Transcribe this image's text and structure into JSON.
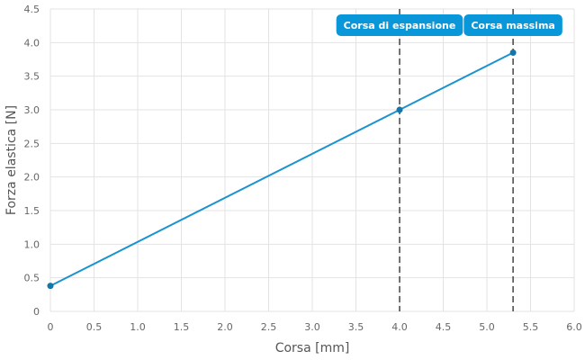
{
  "chart_data": {
    "type": "line",
    "title": "",
    "xlabel": "Corsa [mm]",
    "ylabel": "Forza elastica [N]",
    "xlim": [
      0,
      6
    ],
    "ylim": [
      0,
      4.5
    ],
    "xticks": [
      "0",
      "0.5",
      "1.0",
      "1.5",
      "2.0",
      "2.5",
      "3.0",
      "3.5",
      "4.0",
      "4.5",
      "5.0",
      "5.5",
      "6.0"
    ],
    "yticks": [
      "0",
      "0.5",
      "1.0",
      "1.5",
      "2.0",
      "2.5",
      "3.0",
      "3.5",
      "4.0",
      "4.5"
    ],
    "grid": true,
    "series": [
      {
        "x": [
          0,
          4.0,
          5.3
        ],
        "y": [
          0.38,
          3.0,
          3.85
        ]
      }
    ],
    "annotations": [
      {
        "x": 4.0,
        "label": "Corsa di espansione"
      },
      {
        "x": 5.3,
        "label": "Corsa massima"
      }
    ],
    "colors": {
      "line": "#1a93cf",
      "point": "#1676a8",
      "annotation_bg": "#0a97d9",
      "annotation_line": "#444444",
      "grid": "#e3e3e3"
    }
  }
}
